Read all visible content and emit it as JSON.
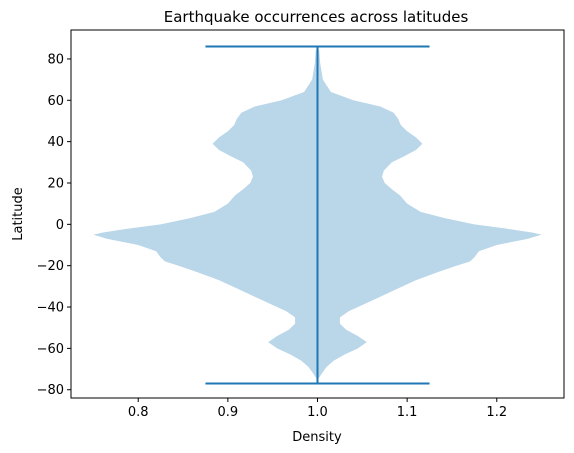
{
  "chart_data": {
    "type": "violin",
    "title": "Earthquake occurrences across latitudes",
    "xlabel": "Density",
    "ylabel": "Latitude",
    "xlim": [
      0.725,
      1.275
    ],
    "ylim": [
      -84,
      94
    ],
    "xticks": [
      0.8,
      0.9,
      1.0,
      1.1,
      1.2
    ],
    "xtick_labels": [
      "0.8",
      "0.9",
      "1.0",
      "1.1",
      "1.2"
    ],
    "yticks": [
      -80,
      -60,
      -40,
      -20,
      0,
      20,
      40,
      60,
      80
    ],
    "ytick_labels": [
      "−80",
      "−60",
      "−40",
      "−20",
      "0",
      "20",
      "40",
      "60",
      "80"
    ],
    "grid": false,
    "colors": {
      "body": "#bad6e9",
      "lines": "#1f77b4"
    },
    "violin": {
      "position": 1.0,
      "min": -77,
      "max": 86,
      "extrema_halfwidth": 0.125,
      "profile": [
        {
          "y": 86,
          "w": 0.0
        },
        {
          "y": 84,
          "w": 0.002
        },
        {
          "y": 78,
          "w": 0.003
        },
        {
          "y": 70,
          "w": 0.006
        },
        {
          "y": 64,
          "w": 0.015
        },
        {
          "y": 60,
          "w": 0.04
        },
        {
          "y": 57,
          "w": 0.07
        },
        {
          "y": 54,
          "w": 0.085
        },
        {
          "y": 51,
          "w": 0.09
        },
        {
          "y": 48,
          "w": 0.093
        },
        {
          "y": 45,
          "w": 0.1
        },
        {
          "y": 42,
          "w": 0.11
        },
        {
          "y": 39,
          "w": 0.117
        },
        {
          "y": 36,
          "w": 0.11
        },
        {
          "y": 33,
          "w": 0.097
        },
        {
          "y": 30,
          "w": 0.083
        },
        {
          "y": 26,
          "w": 0.074
        },
        {
          "y": 23,
          "w": 0.072
        },
        {
          "y": 20,
          "w": 0.075
        },
        {
          "y": 17,
          "w": 0.083
        },
        {
          "y": 14,
          "w": 0.092
        },
        {
          "y": 10,
          "w": 0.1
        },
        {
          "y": 6,
          "w": 0.115
        },
        {
          "y": 3,
          "w": 0.142
        },
        {
          "y": 0,
          "w": 0.175
        },
        {
          "y": -2,
          "w": 0.21
        },
        {
          "y": -4,
          "w": 0.24
        },
        {
          "y": -5,
          "w": 0.25
        },
        {
          "y": -7,
          "w": 0.235
        },
        {
          "y": -10,
          "w": 0.2
        },
        {
          "y": -13,
          "w": 0.18
        },
        {
          "y": -16,
          "w": 0.175
        },
        {
          "y": -18,
          "w": 0.17
        },
        {
          "y": -20,
          "w": 0.155
        },
        {
          "y": -23,
          "w": 0.135
        },
        {
          "y": -27,
          "w": 0.11
        },
        {
          "y": -31,
          "w": 0.09
        },
        {
          "y": -35,
          "w": 0.07
        },
        {
          "y": -39,
          "w": 0.05
        },
        {
          "y": -42,
          "w": 0.035
        },
        {
          "y": -45,
          "w": 0.025
        },
        {
          "y": -48,
          "w": 0.025
        },
        {
          "y": -51,
          "w": 0.032
        },
        {
          "y": -54,
          "w": 0.045
        },
        {
          "y": -57,
          "w": 0.055
        },
        {
          "y": -60,
          "w": 0.045
        },
        {
          "y": -63,
          "w": 0.03
        },
        {
          "y": -66,
          "w": 0.018
        },
        {
          "y": -69,
          "w": 0.01
        },
        {
          "y": -72,
          "w": 0.005
        },
        {
          "y": -74,
          "w": 0.002
        },
        {
          "y": -75,
          "w": 0.0
        }
      ]
    }
  }
}
